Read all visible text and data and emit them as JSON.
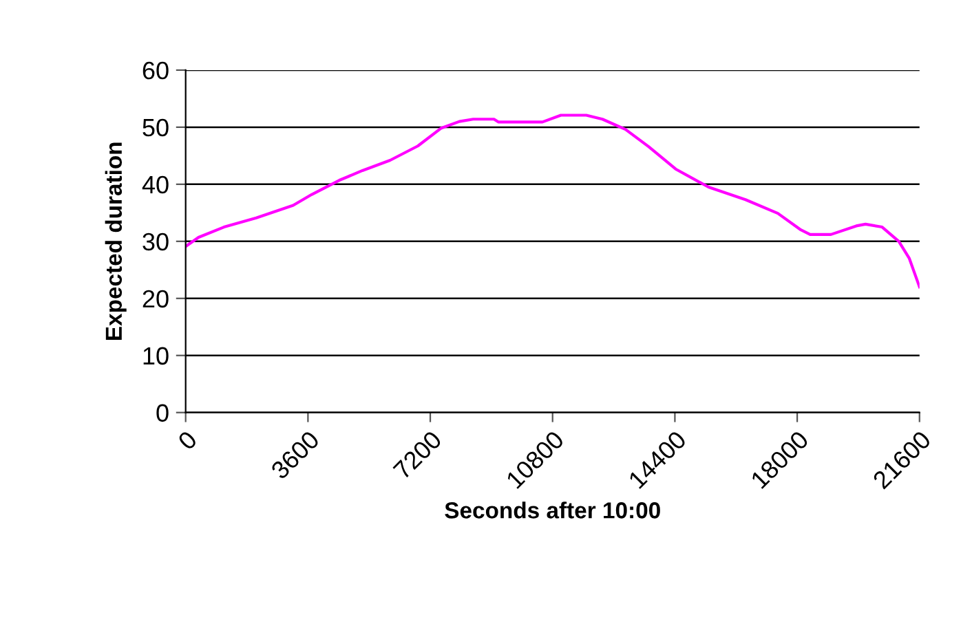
{
  "chart_data": {
    "type": "line",
    "xlabel": "Seconds after 10:00",
    "ylabel": "Expected duration",
    "x": [
      0,
      380,
      1128,
      2078,
      3165,
      3709,
      4524,
      5203,
      6018,
      6833,
      7512,
      8056,
      8463,
      9075,
      9211,
      10501,
      11045,
      11792,
      12267,
      12947,
      13626,
      14441,
      15392,
      16479,
      17430,
      18109,
      18381,
      18992,
      19739,
      20010,
      20500,
      20990,
      21300,
      21600
    ],
    "series": [
      {
        "color": "#ff00ff",
        "values": [
          29.1,
          30.7,
          32.5,
          34.1,
          36.3,
          38.2,
          40.7,
          42.4,
          44.2,
          46.7,
          49.8,
          51.0,
          51.4,
          51.4,
          50.9,
          50.9,
          52.1,
          52.1,
          51.4,
          49.6,
          46.6,
          42.6,
          39.5,
          37.3,
          34.9,
          32.0,
          31.2,
          31.2,
          32.7,
          33.0,
          32.5,
          30.0,
          27.0,
          22.0
        ]
      }
    ],
    "xlim": [
      0,
      21600
    ],
    "xticks": [
      0,
      3600,
      7200,
      10800,
      14400,
      18000,
      21600
    ],
    "ylim": [
      0,
      60
    ],
    "yticks": [
      0,
      10,
      20,
      30,
      40,
      50,
      60
    ],
    "grid": "y",
    "legend": false,
    "marker": "none",
    "line_style": "solid"
  }
}
